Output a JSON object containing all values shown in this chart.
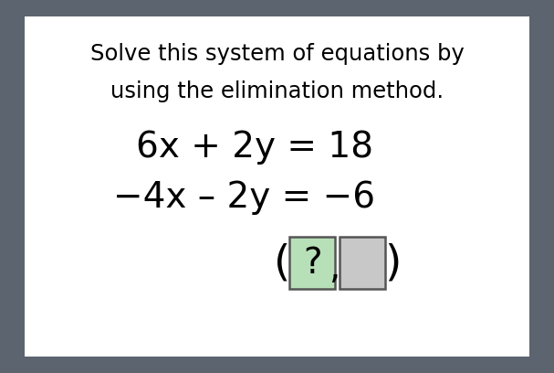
{
  "background_outer": "#5c6470",
  "background_inner": "#ffffff",
  "title_line1": "Solve this system of equations by",
  "title_line2": "using the elimination method.",
  "eq1": "6x + 2y = 18",
  "eq2": "−4x – 2y = −6",
  "box1_label": "?",
  "box1_bg": "#b8e0b8",
  "box1_border": "#555555",
  "box2_bg": "#c8c8c8",
  "box2_border": "#555555",
  "title_fontsize": 17.5,
  "eq_fontsize": 28,
  "answer_fontsize": 28,
  "text_color": "#000000",
  "font_family": "DejaVu Sans"
}
